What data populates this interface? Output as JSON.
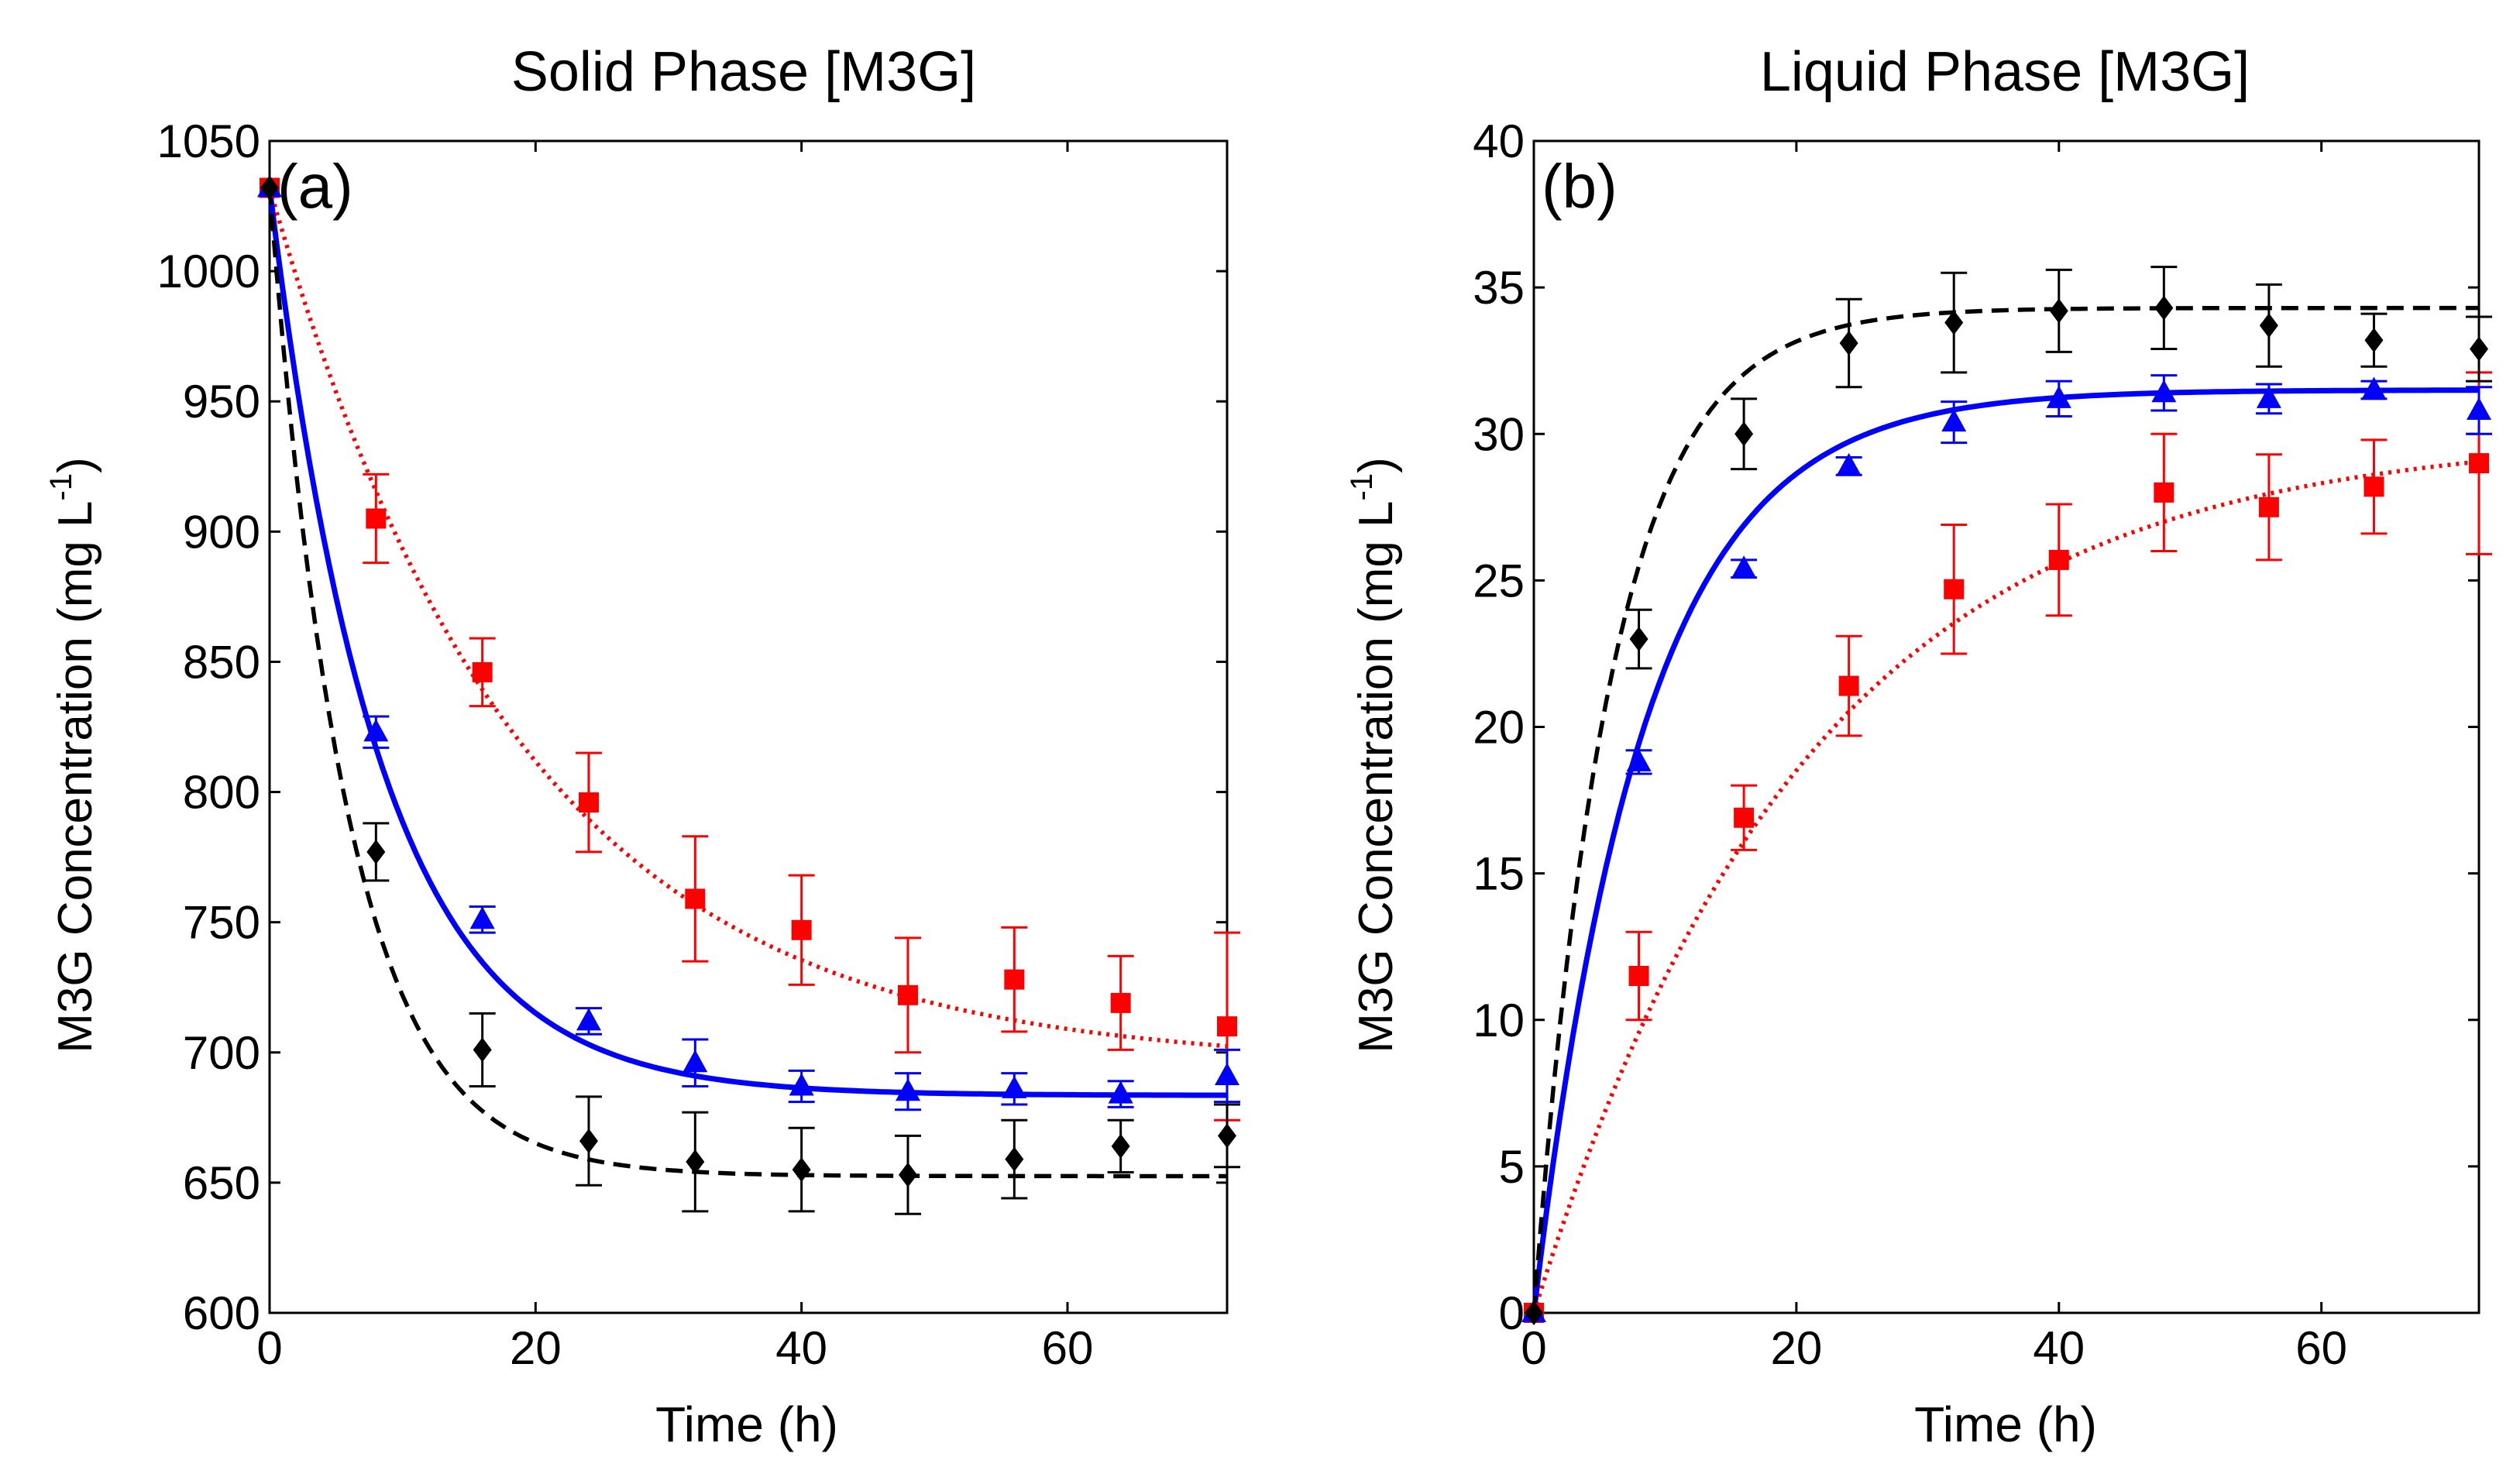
{
  "chart_data": [
    {
      "type": "scatter",
      "panel_label": "(a)",
      "title": "Solid Phase [M3G]",
      "xlabel": "Time (h)",
      "ylabel_main": "M3G Concentration (mg L",
      "ylabel_sup": "-1",
      "ylabel_close": ")",
      "xlim": [
        0,
        72
      ],
      "ylim": [
        600,
        1050
      ],
      "xticks": [
        0,
        20,
        40,
        60
      ],
      "yticks": [
        600,
        650,
        700,
        750,
        800,
        850,
        900,
        950,
        1000,
        1050
      ],
      "xtick_labels": [
        "0",
        "20",
        "40",
        "60"
      ],
      "ytick_labels": [
        "600",
        "650",
        "700",
        "750",
        "800",
        "850",
        "900",
        "950",
        "1000",
        "1050"
      ],
      "grid": false,
      "series": [
        {
          "name": "squares",
          "marker": "square",
          "color": "#ff0000",
          "line_style": "dotted",
          "x": [
            0,
            8,
            16,
            24,
            32,
            40,
            48,
            56,
            64,
            72
          ],
          "y": [
            1032,
            905,
            846,
            796,
            759,
            747,
            722,
            728,
            719,
            710
          ],
          "err": [
            0,
            17,
            13,
            19,
            24,
            21,
            22,
            20,
            18,
            36
          ],
          "fit": {
            "kind": "decay",
            "A": 1032,
            "B": 695,
            "k": 0.053
          }
        },
        {
          "name": "triangles",
          "marker": "triangle",
          "color": "#0000ff",
          "line_style": "solid",
          "x": [
            0,
            8,
            16,
            24,
            32,
            40,
            48,
            56,
            64,
            72
          ],
          "y": [
            1032,
            823,
            751,
            712,
            696,
            687,
            685,
            686,
            684,
            691
          ],
          "err": [
            0,
            6,
            5,
            5,
            9,
            6,
            7,
            6,
            5,
            10
          ],
          "fit": {
            "kind": "decay",
            "A": 1032,
            "B": 683.5,
            "k": 0.12
          }
        },
        {
          "name": "diamonds",
          "marker": "diamond",
          "color": "#000000",
          "line_style": "dashed",
          "x": [
            0,
            8,
            16,
            24,
            32,
            40,
            48,
            56,
            64,
            72
          ],
          "y": [
            1032,
            777,
            701,
            666,
            658,
            655,
            653,
            659,
            664,
            668
          ],
          "err": [
            0,
            11,
            14,
            17,
            19,
            16,
            15,
            15,
            10,
            12
          ],
          "fit": {
            "kind": "decay",
            "A": 1032,
            "B": 652.5,
            "k": 0.17
          }
        }
      ]
    },
    {
      "type": "scatter",
      "panel_label": "(b)",
      "title": "Liquid Phase [M3G]",
      "xlabel": "Time (h)",
      "ylabel_main": "M3G Concentration (mg L",
      "ylabel_sup": "-1",
      "ylabel_close": ")",
      "xlim": [
        0,
        72
      ],
      "ylim": [
        0,
        40
      ],
      "xticks": [
        0,
        20,
        40,
        60
      ],
      "yticks": [
        0,
        5,
        10,
        15,
        20,
        25,
        30,
        35,
        40
      ],
      "xtick_labels": [
        "0",
        "20",
        "40",
        "60"
      ],
      "ytick_labels": [
        "0",
        "5",
        "10",
        "15",
        "20",
        "25",
        "30",
        "35",
        "40"
      ],
      "grid": false,
      "series": [
        {
          "name": "squares",
          "marker": "square",
          "color": "#ff0000",
          "line_style": "dotted",
          "x": [
            0,
            8,
            16,
            24,
            32,
            40,
            48,
            56,
            64,
            72
          ],
          "y": [
            0,
            11.5,
            16.9,
            21.4,
            24.7,
            25.7,
            28.0,
            27.5,
            28.2,
            29.0
          ],
          "err": [
            0,
            1.5,
            1.1,
            1.7,
            2.2,
            1.9,
            2.0,
            1.8,
            1.6,
            3.1
          ],
          "fit": {
            "kind": "rise",
            "A": 30,
            "k": 0.048
          }
        },
        {
          "name": "triangles",
          "marker": "triangle",
          "color": "#0000ff",
          "line_style": "solid",
          "x": [
            0,
            8,
            16,
            24,
            32,
            40,
            48,
            56,
            64,
            72
          ],
          "y": [
            0,
            18.8,
            25.4,
            28.9,
            30.4,
            31.2,
            31.4,
            31.2,
            31.5,
            30.8
          ],
          "err": [
            0,
            0.4,
            0.3,
            0.3,
            0.7,
            0.6,
            0.6,
            0.5,
            0.3,
            0.8
          ],
          "fit": {
            "kind": "rise",
            "A": 31.5,
            "k": 0.12
          }
        },
        {
          "name": "diamonds",
          "marker": "diamond",
          "color": "#000000",
          "line_style": "dashed",
          "x": [
            0,
            8,
            16,
            24,
            32,
            40,
            48,
            56,
            64,
            72
          ],
          "y": [
            0,
            23.0,
            30.0,
            33.1,
            33.8,
            34.2,
            34.3,
            33.7,
            33.2,
            32.9
          ],
          "err": [
            0,
            1.0,
            1.2,
            1.5,
            1.7,
            1.4,
            1.4,
            1.4,
            0.9,
            1.1
          ],
          "fit": {
            "kind": "rise",
            "A": 34.3,
            "k": 0.17
          }
        }
      ]
    }
  ]
}
